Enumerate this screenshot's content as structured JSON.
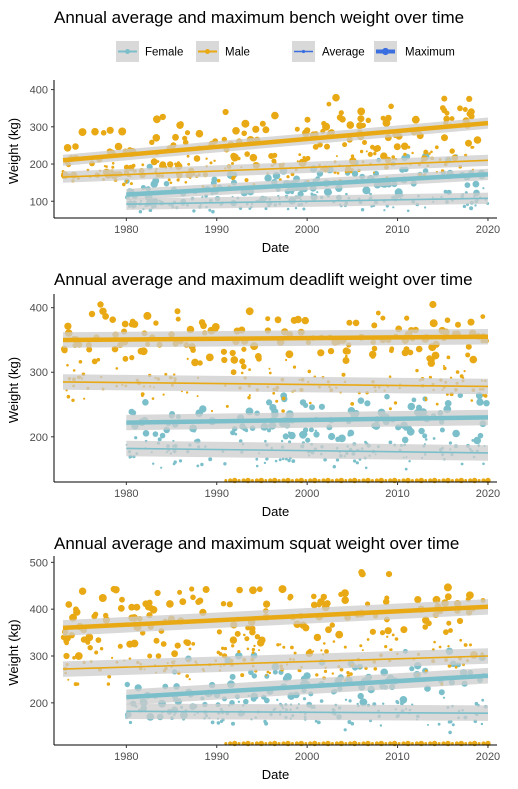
{
  "colors": {
    "female": "#7bbfca",
    "male": "#e8a914",
    "band": "#cccccc",
    "axis": "#000000",
    "legend_key_bg": "#d9d9d9",
    "stat_key": "#3b6fe0"
  },
  "legend": {
    "sex": [
      {
        "label": "Female",
        "color": "#7bbfca"
      },
      {
        "label": "Male",
        "color": "#e8a914"
      }
    ],
    "stat": [
      {
        "label": "Average"
      },
      {
        "label": "Maximum"
      }
    ]
  },
  "chart_data": [
    {
      "type": "scatter",
      "title": "Annual average and maximum bench weight over time",
      "xlabel": "Date",
      "ylabel": "Weight (kg)",
      "xlim": [
        1972,
        2021
      ],
      "ylim": [
        55,
        415
      ],
      "xticks": [
        1980,
        1990,
        2000,
        2010,
        2020
      ],
      "yticks": [
        100,
        200,
        300,
        400
      ],
      "series": [
        {
          "name": "Female",
          "stat": "Maximum",
          "x_start": 1980,
          "x_end": 2020,
          "trend": [
            118,
            172
          ],
          "y_min": 95,
          "y_max": 220,
          "n": 110
        },
        {
          "name": "Female",
          "stat": "Average",
          "x_start": 1980,
          "x_end": 2020,
          "trend": [
            92,
            108
          ],
          "y_min": 72,
          "y_max": 135,
          "n": 140
        },
        {
          "name": "Male",
          "stat": "Maximum",
          "x_start": 1973,
          "x_end": 2020,
          "trend": [
            210,
            310
          ],
          "y_min": 170,
          "y_max": 405,
          "n": 170
        },
        {
          "name": "Male",
          "stat": "Average",
          "x_start": 1973,
          "x_end": 2020,
          "trend": [
            165,
            210
          ],
          "y_min": 140,
          "y_max": 245,
          "n": 140
        }
      ]
    },
    {
      "type": "scatter",
      "title": "Annual average and maximum deadlift weight over time",
      "xlabel": "Date",
      "ylabel": "Weight (kg)",
      "xlim": [
        1972,
        2021
      ],
      "ylim": [
        130,
        415
      ],
      "xticks": [
        1980,
        1990,
        2000,
        2010,
        2020
      ],
      "yticks": [
        200,
        300,
        400
      ],
      "series": [
        {
          "name": "Female",
          "stat": "Maximum",
          "x_start": 1980,
          "x_end": 2020,
          "trend": [
            222,
            230
          ],
          "y_min": 185,
          "y_max": 265,
          "n": 110
        },
        {
          "name": "Female",
          "stat": "Average",
          "x_start": 1980,
          "x_end": 2020,
          "trend": [
            182,
            175
          ],
          "y_min": 150,
          "y_max": 210,
          "n": 140
        },
        {
          "name": "Male",
          "stat": "Maximum",
          "x_start": 1973,
          "x_end": 2020,
          "trend": [
            350,
            355
          ],
          "y_min": 300,
          "y_max": 405,
          "n": 150
        },
        {
          "name": "Male",
          "stat": "Average",
          "x_start": 1973,
          "x_end": 2020,
          "trend": [
            285,
            278
          ],
          "y_min": 240,
          "y_max": 325,
          "n": 140
        }
      ],
      "baseline_points": {
        "name": "Male",
        "y": 132,
        "x_start": 1991,
        "x_end": 2020,
        "n": 60
      }
    },
    {
      "type": "scatter",
      "title": "Annual average and maximum squat weight over time",
      "xlabel": "Date",
      "ylabel": "Weight (kg)",
      "xlim": [
        1972,
        2021
      ],
      "ylim": [
        110,
        505
      ],
      "xticks": [
        1980,
        1990,
        2000,
        2010,
        2020
      ],
      "yticks": [
        200,
        300,
        400,
        500
      ],
      "series": [
        {
          "name": "Female",
          "stat": "Maximum",
          "x_start": 1980,
          "x_end": 2020,
          "trend": [
            212,
            258
          ],
          "y_min": 170,
          "y_max": 310,
          "n": 110
        },
        {
          "name": "Female",
          "stat": "Average",
          "x_start": 1980,
          "x_end": 2020,
          "trend": [
            182,
            178
          ],
          "y_min": 135,
          "y_max": 215,
          "n": 140
        },
        {
          "name": "Male",
          "stat": "Maximum",
          "x_start": 1973,
          "x_end": 2020,
          "trend": [
            360,
            405
          ],
          "y_min": 300,
          "y_max": 490,
          "n": 160
        },
        {
          "name": "Male",
          "stat": "Average",
          "x_start": 1973,
          "x_end": 2020,
          "trend": [
            272,
            300
          ],
          "y_min": 240,
          "y_max": 345,
          "n": 140
        }
      ],
      "baseline_points": {
        "name": "Male",
        "y": 112,
        "x_start": 1991,
        "x_end": 2020,
        "n": 60
      }
    }
  ]
}
